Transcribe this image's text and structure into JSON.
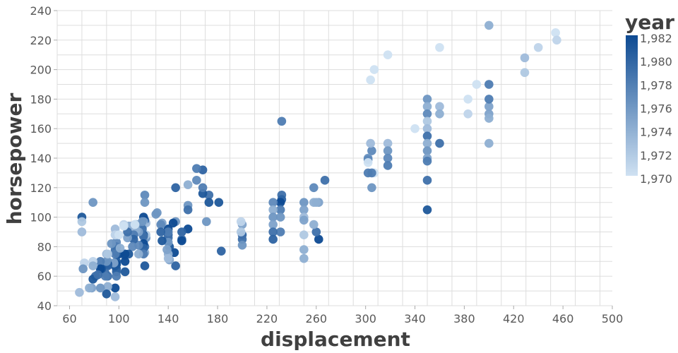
{
  "chart_data": {
    "type": "scatter",
    "xlabel": "displacement",
    "ylabel": "horsepower",
    "xlim": [
      50,
      500
    ],
    "ylim": [
      40,
      240
    ],
    "xticks": [
      60,
      100,
      140,
      180,
      220,
      260,
      300,
      340,
      380,
      420,
      460,
      500
    ],
    "yticks": [
      40,
      60,
      80,
      100,
      120,
      140,
      160,
      180,
      200,
      220,
      240
    ],
    "x_tick_labels": [
      "60",
      "100",
      "140",
      "180",
      "220",
      "260",
      "300",
      "340",
      "380",
      "420",
      "460",
      "500"
    ],
    "y_tick_labels": [
      "40",
      "60",
      "80",
      "100",
      "120",
      "140",
      "160",
      "180",
      "200",
      "220",
      "240"
    ],
    "grid": true,
    "color_field": "year",
    "legend": {
      "title": "year",
      "placement": "right",
      "domain": [
        1970,
        1982
      ],
      "labels": [
        "1,982",
        "1,980",
        "1,978",
        "1,976",
        "1,974",
        "1,972",
        "1,970"
      ],
      "label_values": [
        1982,
        1980,
        1978,
        1976,
        1974,
        1972,
        1970
      ],
      "color_low": "#cfe1f2",
      "color_high": "#0d4a92"
    },
    "points": [
      {
        "x": 454,
        "y": 225,
        "year": 1970
      },
      {
        "x": 455,
        "y": 220,
        "year": 1971
      },
      {
        "x": 440,
        "y": 215,
        "year": 1971
      },
      {
        "x": 429,
        "y": 198,
        "year": 1972
      },
      {
        "x": 429,
        "y": 208,
        "year": 1973
      },
      {
        "x": 400,
        "y": 230,
        "year": 1974
      },
      {
        "x": 400,
        "y": 150,
        "year": 1974
      },
      {
        "x": 400,
        "y": 170,
        "year": 1975
      },
      {
        "x": 400,
        "y": 175,
        "year": 1975
      },
      {
        "x": 400,
        "y": 167,
        "year": 1974
      },
      {
        "x": 400,
        "y": 190,
        "year": 1978
      },
      {
        "x": 400,
        "y": 180,
        "year": 1978
      },
      {
        "x": 390,
        "y": 190,
        "year": 1970
      },
      {
        "x": 383,
        "y": 180,
        "year": 1970
      },
      {
        "x": 383,
        "y": 170,
        "year": 1971
      },
      {
        "x": 360,
        "y": 215,
        "year": 1970
      },
      {
        "x": 360,
        "y": 175,
        "year": 1973
      },
      {
        "x": 360,
        "y": 170,
        "year": 1974
      },
      {
        "x": 360,
        "y": 150,
        "year": 1979
      },
      {
        "x": 350,
        "y": 180,
        "year": 1976
      },
      {
        "x": 350,
        "y": 175,
        "year": 1974
      },
      {
        "x": 350,
        "y": 170,
        "year": 1977
      },
      {
        "x": 350,
        "y": 165,
        "year": 1972
      },
      {
        "x": 350,
        "y": 160,
        "year": 1973
      },
      {
        "x": 350,
        "y": 155,
        "year": 1979
      },
      {
        "x": 350,
        "y": 150,
        "year": 1974
      },
      {
        "x": 350,
        "y": 145,
        "year": 1976
      },
      {
        "x": 350,
        "y": 140,
        "year": 1975
      },
      {
        "x": 350,
        "y": 138,
        "year": 1978
      },
      {
        "x": 350,
        "y": 125,
        "year": 1979
      },
      {
        "x": 350,
        "y": 105,
        "year": 1981
      },
      {
        "x": 340,
        "y": 160,
        "year": 1970
      },
      {
        "x": 318,
        "y": 210,
        "year": 1970
      },
      {
        "x": 318,
        "y": 150,
        "year": 1973
      },
      {
        "x": 318,
        "y": 145,
        "year": 1976
      },
      {
        "x": 318,
        "y": 140,
        "year": 1977
      },
      {
        "x": 318,
        "y": 135,
        "year": 1978
      },
      {
        "x": 307,
        "y": 200,
        "year": 1970
      },
      {
        "x": 307,
        "y": 130,
        "year": 1970
      },
      {
        "x": 305,
        "y": 145,
        "year": 1977
      },
      {
        "x": 305,
        "y": 130,
        "year": 1978
      },
      {
        "x": 305,
        "y": 120,
        "year": 1976
      },
      {
        "x": 304,
        "y": 193,
        "year": 1970
      },
      {
        "x": 304,
        "y": 150,
        "year": 1973
      },
      {
        "x": 302,
        "y": 140,
        "year": 1976
      },
      {
        "x": 302,
        "y": 130,
        "year": 1978
      },
      {
        "x": 302,
        "y": 139,
        "year": 1977
      },
      {
        "x": 267,
        "y": 125,
        "year": 1979
      },
      {
        "x": 262,
        "y": 110,
        "year": 1975
      },
      {
        "x": 262,
        "y": 85,
        "year": 1982
      },
      {
        "x": 260,
        "y": 110,
        "year": 1974
      },
      {
        "x": 260,
        "y": 90,
        "year": 1979
      },
      {
        "x": 258,
        "y": 110,
        "year": 1974
      },
      {
        "x": 258,
        "y": 120,
        "year": 1977
      },
      {
        "x": 258,
        "y": 95,
        "year": 1974
      },
      {
        "x": 250,
        "y": 110,
        "year": 1976
      },
      {
        "x": 250,
        "y": 105,
        "year": 1975
      },
      {
        "x": 250,
        "y": 100,
        "year": 1973
      },
      {
        "x": 250,
        "y": 98,
        "year": 1975
      },
      {
        "x": 250,
        "y": 88,
        "year": 1972
      },
      {
        "x": 250,
        "y": 78,
        "year": 1974
      },
      {
        "x": 250,
        "y": 72,
        "year": 1974
      },
      {
        "x": 232,
        "y": 165,
        "year": 1978
      },
      {
        "x": 232,
        "y": 115,
        "year": 1979
      },
      {
        "x": 232,
        "y": 112,
        "year": 1980
      },
      {
        "x": 231,
        "y": 110,
        "year": 1982
      },
      {
        "x": 231,
        "y": 105,
        "year": 1978
      },
      {
        "x": 231,
        "y": 100,
        "year": 1976
      },
      {
        "x": 231,
        "y": 90,
        "year": 1978
      },
      {
        "x": 225,
        "y": 110,
        "year": 1977
      },
      {
        "x": 225,
        "y": 105,
        "year": 1974
      },
      {
        "x": 225,
        "y": 100,
        "year": 1976
      },
      {
        "x": 225,
        "y": 95,
        "year": 1975
      },
      {
        "x": 225,
        "y": 90,
        "year": 1979
      },
      {
        "x": 225,
        "y": 85,
        "year": 1980
      },
      {
        "x": 200,
        "y": 95,
        "year": 1975
      },
      {
        "x": 200,
        "y": 88,
        "year": 1980
      },
      {
        "x": 200,
        "y": 85,
        "year": 1979
      },
      {
        "x": 200,
        "y": 81,
        "year": 1976
      },
      {
        "x": 199,
        "y": 97,
        "year": 1971
      },
      {
        "x": 199,
        "y": 90,
        "year": 1972
      },
      {
        "x": 183,
        "y": 77,
        "year": 1980
      },
      {
        "x": 181,
        "y": 110,
        "year": 1981
      },
      {
        "x": 173,
        "y": 115,
        "year": 1979
      },
      {
        "x": 173,
        "y": 110,
        "year": 1981
      },
      {
        "x": 171,
        "y": 97,
        "year": 1976
      },
      {
        "x": 168,
        "y": 132,
        "year": 1980
      },
      {
        "x": 168,
        "y": 116,
        "year": 1981
      },
      {
        "x": 168,
        "y": 120,
        "year": 1978
      },
      {
        "x": 163,
        "y": 133,
        "year": 1978
      },
      {
        "x": 163,
        "y": 125,
        "year": 1977
      },
      {
        "x": 156,
        "y": 122,
        "year": 1974
      },
      {
        "x": 156,
        "y": 108,
        "year": 1976
      },
      {
        "x": 156,
        "y": 105,
        "year": 1979
      },
      {
        "x": 156,
        "y": 92,
        "year": 1982
      },
      {
        "x": 151,
        "y": 90,
        "year": 1980
      },
      {
        "x": 151,
        "y": 85,
        "year": 1979
      },
      {
        "x": 151,
        "y": 84,
        "year": 1982
      },
      {
        "x": 146,
        "y": 120,
        "year": 1980
      },
      {
        "x": 146,
        "y": 97,
        "year": 1976
      },
      {
        "x": 145,
        "y": 76,
        "year": 1982
      },
      {
        "x": 144,
        "y": 96,
        "year": 1982
      },
      {
        "x": 146,
        "y": 67,
        "year": 1980
      },
      {
        "x": 141,
        "y": 80,
        "year": 1981
      },
      {
        "x": 141,
        "y": 71,
        "year": 1975
      },
      {
        "x": 140,
        "y": 92,
        "year": 1982
      },
      {
        "x": 140,
        "y": 88,
        "year": 1980
      },
      {
        "x": 140,
        "y": 86,
        "year": 1979
      },
      {
        "x": 140,
        "y": 90,
        "year": 1978
      },
      {
        "x": 140,
        "y": 83,
        "year": 1976
      },
      {
        "x": 140,
        "y": 75,
        "year": 1974
      },
      {
        "x": 140,
        "y": 72,
        "year": 1973
      },
      {
        "x": 139,
        "y": 78,
        "year": 1975
      },
      {
        "x": 135,
        "y": 84,
        "year": 1981
      },
      {
        "x": 135,
        "y": 96,
        "year": 1975
      },
      {
        "x": 134,
        "y": 95,
        "year": 1977
      },
      {
        "x": 134,
        "y": 90,
        "year": 1980
      },
      {
        "x": 131,
        "y": 103,
        "year": 1976
      },
      {
        "x": 130,
        "y": 102,
        "year": 1976
      },
      {
        "x": 122,
        "y": 86,
        "year": 1976
      },
      {
        "x": 122,
        "y": 96,
        "year": 1973
      },
      {
        "x": 122,
        "y": 88,
        "year": 1972
      },
      {
        "x": 121,
        "y": 115,
        "year": 1977
      },
      {
        "x": 121,
        "y": 110,
        "year": 1976
      },
      {
        "x": 121,
        "y": 98,
        "year": 1980
      },
      {
        "x": 121,
        "y": 80,
        "year": 1979
      },
      {
        "x": 121,
        "y": 76,
        "year": 1974
      },
      {
        "x": 121,
        "y": 67,
        "year": 1981
      },
      {
        "x": 120,
        "y": 100,
        "year": 1982
      },
      {
        "x": 120,
        "y": 97,
        "year": 1975
      },
      {
        "x": 120,
        "y": 95,
        "year": 1973
      },
      {
        "x": 120,
        "y": 88,
        "year": 1981
      },
      {
        "x": 120,
        "y": 87,
        "year": 1979
      },
      {
        "x": 120,
        "y": 82,
        "year": 1982
      },
      {
        "x": 120,
        "y": 79,
        "year": 1980
      },
      {
        "x": 120,
        "y": 75,
        "year": 1978
      },
      {
        "x": 119,
        "y": 92,
        "year": 1979
      },
      {
        "x": 119,
        "y": 97,
        "year": 1976
      },
      {
        "x": 116,
        "y": 90,
        "year": 1975
      },
      {
        "x": 116,
        "y": 81,
        "year": 1977
      },
      {
        "x": 116,
        "y": 75,
        "year": 1974
      },
      {
        "x": 114,
        "y": 95,
        "year": 1976
      },
      {
        "x": 114,
        "y": 91,
        "year": 1974
      },
      {
        "x": 113,
        "y": 95,
        "year": 1973
      },
      {
        "x": 112,
        "y": 88,
        "year": 1978
      },
      {
        "x": 112,
        "y": 85,
        "year": 1980
      },
      {
        "x": 111,
        "y": 80,
        "year": 1977
      },
      {
        "x": 110,
        "y": 94,
        "year": 1973
      },
      {
        "x": 108,
        "y": 94,
        "year": 1974
      },
      {
        "x": 108,
        "y": 75,
        "year": 1981
      },
      {
        "x": 107,
        "y": 86,
        "year": 1975
      },
      {
        "x": 107,
        "y": 90,
        "year": 1979
      },
      {
        "x": 105,
        "y": 74,
        "year": 1980
      },
      {
        "x": 105,
        "y": 70,
        "year": 1982
      },
      {
        "x": 105,
        "y": 63,
        "year": 1981
      },
      {
        "x": 105,
        "y": 75,
        "year": 1982
      },
      {
        "x": 104,
        "y": 95,
        "year": 1971
      },
      {
        "x": 100,
        "y": 75,
        "year": 1982
      },
      {
        "x": 98,
        "y": 83,
        "year": 1977
      },
      {
        "x": 98,
        "y": 80,
        "year": 1978
      },
      {
        "x": 98,
        "y": 76,
        "year": 1980
      },
      {
        "x": 98,
        "y": 70,
        "year": 1981
      },
      {
        "x": 98,
        "y": 68,
        "year": 1982
      },
      {
        "x": 98,
        "y": 65,
        "year": 1981
      },
      {
        "x": 98,
        "y": 63,
        "year": 1980
      },
      {
        "x": 98,
        "y": 60,
        "year": 1978
      },
      {
        "x": 97,
        "y": 92,
        "year": 1973
      },
      {
        "x": 97,
        "y": 88,
        "year": 1972
      },
      {
        "x": 97,
        "y": 78,
        "year": 1979
      },
      {
        "x": 97,
        "y": 75,
        "year": 1978
      },
      {
        "x": 97,
        "y": 67,
        "year": 1981
      },
      {
        "x": 97,
        "y": 52,
        "year": 1982
      },
      {
        "x": 97,
        "y": 46,
        "year": 1973
      },
      {
        "x": 96,
        "y": 69,
        "year": 1975
      },
      {
        "x": 91,
        "y": 70,
        "year": 1976
      },
      {
        "x": 91,
        "y": 68,
        "year": 1982
      },
      {
        "x": 91,
        "y": 67,
        "year": 1980
      },
      {
        "x": 91,
        "y": 60,
        "year": 1979
      },
      {
        "x": 91,
        "y": 53,
        "year": 1974
      },
      {
        "x": 90,
        "y": 75,
        "year": 1973
      },
      {
        "x": 90,
        "y": 70,
        "year": 1976
      },
      {
        "x": 90,
        "y": 48,
        "year": 1981
      },
      {
        "x": 89,
        "y": 62,
        "year": 1979
      },
      {
        "x": 89,
        "y": 60,
        "year": 1978
      },
      {
        "x": 86,
        "y": 65,
        "year": 1981
      },
      {
        "x": 85,
        "y": 70,
        "year": 1978
      },
      {
        "x": 85,
        "y": 65,
        "year": 1982
      },
      {
        "x": 85,
        "y": 52,
        "year": 1976
      },
      {
        "x": 81,
        "y": 60,
        "year": 1979
      },
      {
        "x": 79,
        "y": 110,
        "year": 1976
      },
      {
        "x": 79,
        "y": 70,
        "year": 1971
      },
      {
        "x": 79,
        "y": 67,
        "year": 1974
      },
      {
        "x": 79,
        "y": 58,
        "year": 1981
      },
      {
        "x": 78,
        "y": 52,
        "year": 1975
      },
      {
        "x": 76,
        "y": 52,
        "year": 1974
      },
      {
        "x": 72,
        "y": 69,
        "year": 1971
      },
      {
        "x": 71,
        "y": 65,
        "year": 1976
      },
      {
        "x": 70,
        "y": 100,
        "year": 1981
      },
      {
        "x": 70,
        "y": 97,
        "year": 1972
      },
      {
        "x": 70,
        "y": 90,
        "year": 1973
      },
      {
        "x": 68,
        "y": 49,
        "year": 1973
      },
      {
        "x": 97,
        "y": 88,
        "year": 1971
      },
      {
        "x": 104,
        "y": 94,
        "year": 1970
      },
      {
        "x": 113,
        "y": 95,
        "year": 1970
      },
      {
        "x": 302,
        "y": 137,
        "year": 1970
      },
      {
        "x": 100,
        "y": 88,
        "year": 1970
      },
      {
        "x": 91,
        "y": 75,
        "year": 1972
      },
      {
        "x": 83,
        "y": 61,
        "year": 1979
      },
      {
        "x": 94,
        "y": 82,
        "year": 1976
      },
      {
        "x": 101,
        "y": 79,
        "year": 1974
      }
    ]
  }
}
